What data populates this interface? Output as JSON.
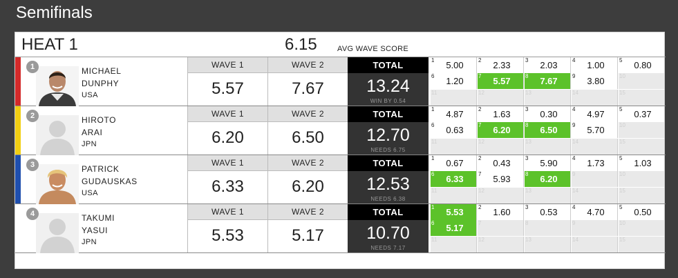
{
  "section": {
    "title": "Semifinals"
  },
  "heat": {
    "title": "HEAT 1",
    "avg_value": "6.15",
    "avg_label": "AVG WAVE SCORE"
  },
  "labels": {
    "wave1": "WAVE 1",
    "wave2": "WAVE 2",
    "total": "TOTAL"
  },
  "colors": {
    "red": "#d42a2a",
    "yellow": "#f2cf12",
    "blue": "#1f4fae",
    "white": "#ffffff",
    "highlight": "#5cc22a"
  },
  "surfers": [
    {
      "seed": "1",
      "first": "MICHAEL",
      "last": "DUNPHY",
      "country": "USA",
      "jersey_color": "red",
      "avatar": "photo",
      "wave1": "5.57",
      "wave2": "7.67",
      "total": "13.24",
      "sub": "WIN BY 0.54",
      "waves": [
        {
          "n": "1",
          "v": "5.00"
        },
        {
          "n": "2",
          "v": "2.33"
        },
        {
          "n": "3",
          "v": "2.03"
        },
        {
          "n": "4",
          "v": "1.00"
        },
        {
          "n": "5",
          "v": "0.80"
        },
        {
          "n": "6",
          "v": "1.20"
        },
        {
          "n": "7",
          "v": "5.57",
          "hi": true
        },
        {
          "n": "8",
          "v": "7.67",
          "hi": true
        },
        {
          "n": "9",
          "v": "3.80"
        },
        {
          "n": "10",
          "v": ""
        },
        {
          "n": "11",
          "v": ""
        },
        {
          "n": "12",
          "v": ""
        },
        {
          "n": "13",
          "v": ""
        },
        {
          "n": "14",
          "v": ""
        },
        {
          "n": "15",
          "v": ""
        }
      ]
    },
    {
      "seed": "2",
      "first": "HIROTO",
      "last": "ARAI",
      "country": "JPN",
      "jersey_color": "yellow",
      "avatar": "silhouette",
      "wave1": "6.20",
      "wave2": "6.50",
      "total": "12.70",
      "sub": "NEEDS 6.75",
      "waves": [
        {
          "n": "1",
          "v": "4.87"
        },
        {
          "n": "2",
          "v": "1.63"
        },
        {
          "n": "3",
          "v": "0.30"
        },
        {
          "n": "4",
          "v": "4.97"
        },
        {
          "n": "5",
          "v": "0.37"
        },
        {
          "n": "6",
          "v": "0.63"
        },
        {
          "n": "7",
          "v": "6.20",
          "hi": true
        },
        {
          "n": "8",
          "v": "6.50",
          "hi": true
        },
        {
          "n": "9",
          "v": "5.70"
        },
        {
          "n": "10",
          "v": ""
        },
        {
          "n": "11",
          "v": ""
        },
        {
          "n": "12",
          "v": ""
        },
        {
          "n": "13",
          "v": ""
        },
        {
          "n": "14",
          "v": ""
        },
        {
          "n": "15",
          "v": ""
        }
      ]
    },
    {
      "seed": "3",
      "first": "PATRICK",
      "last": "GUDAUSKAS",
      "country": "USA",
      "jersey_color": "blue",
      "avatar": "photo-blond",
      "wave1": "6.33",
      "wave2": "6.20",
      "total": "12.53",
      "sub": "NEEDS 6.38",
      "waves": [
        {
          "n": "1",
          "v": "0.67"
        },
        {
          "n": "2",
          "v": "0.43"
        },
        {
          "n": "3",
          "v": "5.90"
        },
        {
          "n": "4",
          "v": "1.73"
        },
        {
          "n": "5",
          "v": "1.03"
        },
        {
          "n": "6",
          "v": "6.33",
          "hi": true
        },
        {
          "n": "7",
          "v": "5.93"
        },
        {
          "n": "8",
          "v": "6.20",
          "hi": true
        },
        {
          "n": "9",
          "v": ""
        },
        {
          "n": "10",
          "v": ""
        },
        {
          "n": "11",
          "v": ""
        },
        {
          "n": "12",
          "v": ""
        },
        {
          "n": "13",
          "v": ""
        },
        {
          "n": "14",
          "v": ""
        },
        {
          "n": "15",
          "v": ""
        }
      ]
    },
    {
      "seed": "4",
      "first": "TAKUMI",
      "last": "YASUI",
      "country": "JPN",
      "jersey_color": "white",
      "avatar": "silhouette",
      "wave1": "5.53",
      "wave2": "5.17",
      "total": "10.70",
      "sub": "NEEDS 7.17",
      "waves": [
        {
          "n": "1",
          "v": "5.53",
          "hi": true
        },
        {
          "n": "2",
          "v": "1.60"
        },
        {
          "n": "3",
          "v": "0.53"
        },
        {
          "n": "4",
          "v": "4.70"
        },
        {
          "n": "5",
          "v": "0.50"
        },
        {
          "n": "6",
          "v": "5.17",
          "hi": true
        },
        {
          "n": "7",
          "v": ""
        },
        {
          "n": "8",
          "v": ""
        },
        {
          "n": "9",
          "v": ""
        },
        {
          "n": "10",
          "v": ""
        },
        {
          "n": "11",
          "v": ""
        },
        {
          "n": "12",
          "v": ""
        },
        {
          "n": "13",
          "v": ""
        },
        {
          "n": "14",
          "v": ""
        },
        {
          "n": "15",
          "v": ""
        }
      ]
    }
  ]
}
